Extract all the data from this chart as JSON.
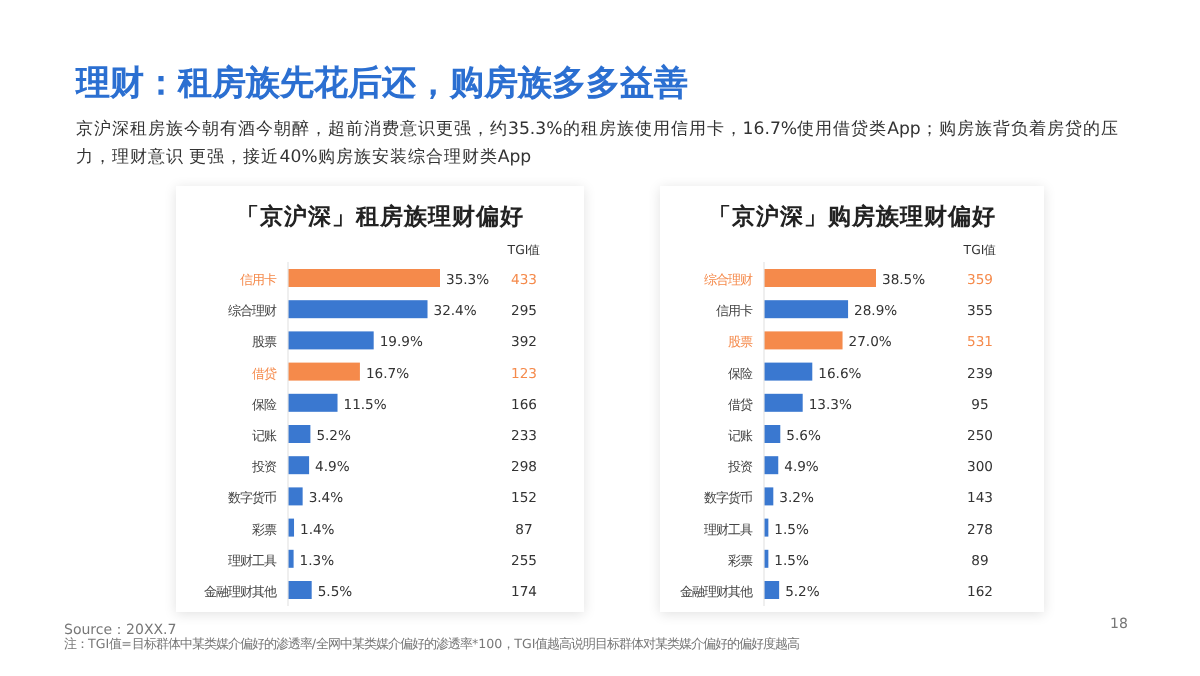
{
  "chart_data": [
    {
      "type": "other",
      "title": "理财：租房族先花后还，购房族多多益善",
      "subtitle": "京沪深租房族今朝有酒今朝醉，超前消费意识更强，约35.3%的租房族使用信用卡，16.7%使用借贷类App；购房族背负着房贷的压力，理财意识 更强，接近40%购房族安装综合理财类App",
      "annotations": [
        "Source：20XX.7",
        "注：TGI值=目标群体中某类媒介偏好的渗透率/全网中某类媒介偏好的渗透率*100，TGI值越高说明目标群体对某类媒介偏好的偏好度越高",
        "18"
      ]
    },
    {
      "type": "bar",
      "orientation": "horizontal",
      "title": "「京沪深」租房族理财偏好",
      "categories": [
        "信用卡",
        "综合理财",
        "股票",
        "借贷",
        "保险",
        "记账",
        "投资",
        "数字货币",
        "彩票",
        "理财工具",
        "金融理财其他"
      ],
      "values": [
        35.3,
        32.4,
        19.9,
        16.7,
        11.5,
        5.2,
        4.9,
        3.4,
        1.4,
        1.3,
        5.5
      ],
      "value_labels": [
        "35.3%",
        "32.4%",
        "19.9%",
        "16.7%",
        "11.5%",
        "5.2%",
        "4.9%",
        "3.4%",
        "1.4%",
        "1.3%",
        "5.5%"
      ],
      "colors": [
        "#f58a4b",
        "#3a78d0",
        "#3a78d0",
        "#f58a4b",
        "#3a78d0",
        "#3a78d0",
        "#3a78d0",
        "#3a78d0",
        "#3a78d0",
        "#3a78d0",
        "#3a78d0"
      ],
      "annotations": [
        "TGI值",
        "433",
        "295",
        "392",
        "123",
        "166",
        "233",
        "298",
        "152",
        "87",
        "255",
        "174"
      ]
    },
    {
      "type": "bar",
      "orientation": "horizontal",
      "title": "「京沪深」购房族理财偏好",
      "categories": [
        "综合理财",
        "信用卡",
        "股票",
        "保险",
        "借贷",
        "记账",
        "投资",
        "数字货币",
        "理财工具",
        "彩票",
        "金融理财其他"
      ],
      "values": [
        38.5,
        28.9,
        27.0,
        16.6,
        13.3,
        5.6,
        4.9,
        3.2,
        1.5,
        1.5,
        5.2
      ],
      "value_labels": [
        "38.5%",
        "28.9%",
        "27.0%",
        "16.6%",
        "13.3%",
        "5.6%",
        "4.9%",
        "3.2%",
        "1.5%",
        "1.5%",
        "5.2%"
      ],
      "colors": [
        "#f58a4b",
        "#3a78d0",
        "#f58a4b",
        "#3a78d0",
        "#3a78d0",
        "#3a78d0",
        "#3a78d0",
        "#3a78d0",
        "#3a78d0",
        "#3a78d0",
        "#3a78d0"
      ],
      "annotations": [
        "TGI值",
        "359",
        "355",
        "531",
        "239",
        "95",
        "250",
        "300",
        "143",
        "278",
        "89",
        "162"
      ]
    }
  ]
}
